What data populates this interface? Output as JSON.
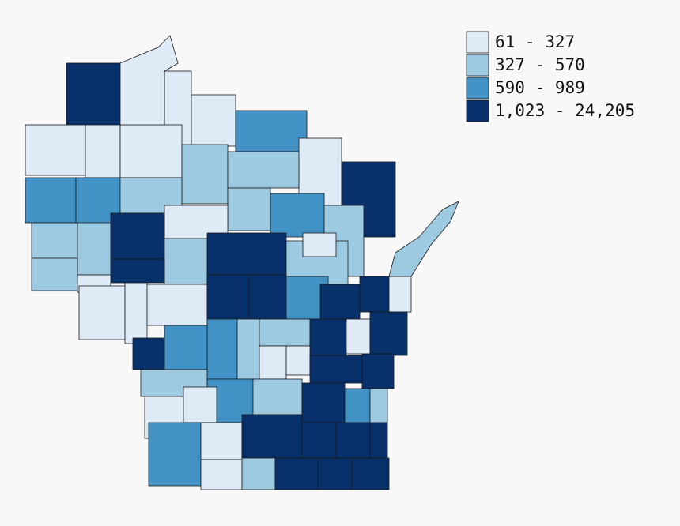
{
  "legend": [
    {
      "label": "61 - 327",
      "color": "#deebf7"
    },
    {
      "label": "327 - 570",
      "color": "#9ecae1"
    },
    {
      "label": "590 - 989",
      "color": "#4292c6"
    },
    {
      "label": "1,023 - 24,205",
      "color": "#08306b"
    }
  ]
}
